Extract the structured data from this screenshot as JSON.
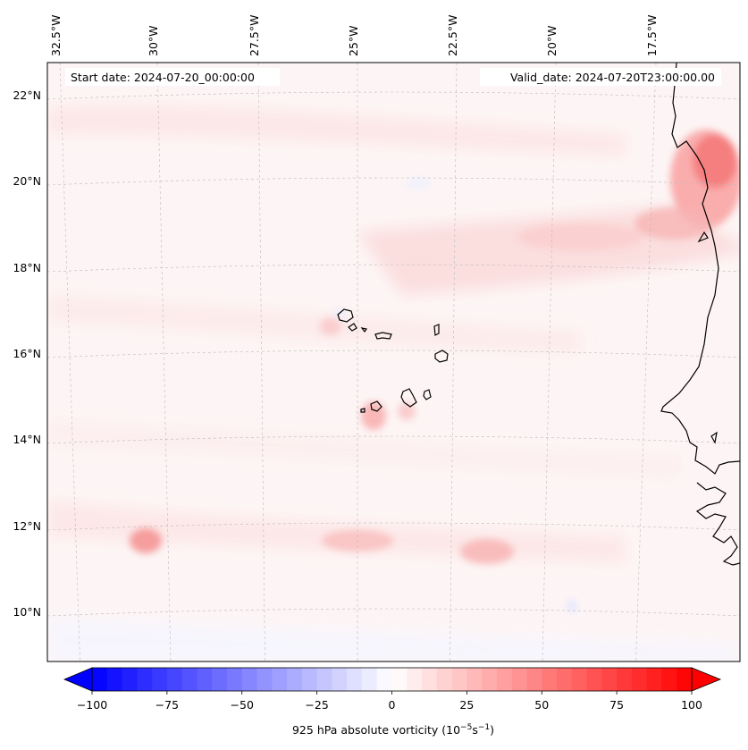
{
  "map": {
    "lon_labels": [
      "32.5°W",
      "30°W",
      "27.5°W",
      "25°W",
      "22.5°W",
      "20°W",
      "17.5°W"
    ],
    "lat_labels": [
      "22°N",
      "20°N",
      "18°N",
      "16°N",
      "14°N",
      "12°N",
      "10°N"
    ],
    "start_date_text": "Start date: 2024-07-20_00:00:00",
    "valid_date_text": "Valid_date: 2024-07-20T23:00:00.00",
    "colors": {
      "background_field": "#fdf5f5",
      "coast_line": "#000000",
      "grid_line": "#bbbbbb"
    }
  },
  "colorbar": {
    "ticks": [
      "−100",
      "−75",
      "−50",
      "−25",
      "0",
      "25",
      "50",
      "75",
      "100"
    ],
    "label": "925 hPa absolute vorticity (10",
    "label_exp1": "−5",
    "label_mid": "s",
    "label_exp2": "−1",
    "label_end": ")",
    "min": -100,
    "max": 100,
    "colors": {
      "negative_end": "#0000ff",
      "zero": "#ffffff",
      "positive_end": "#ff0000"
    }
  }
}
